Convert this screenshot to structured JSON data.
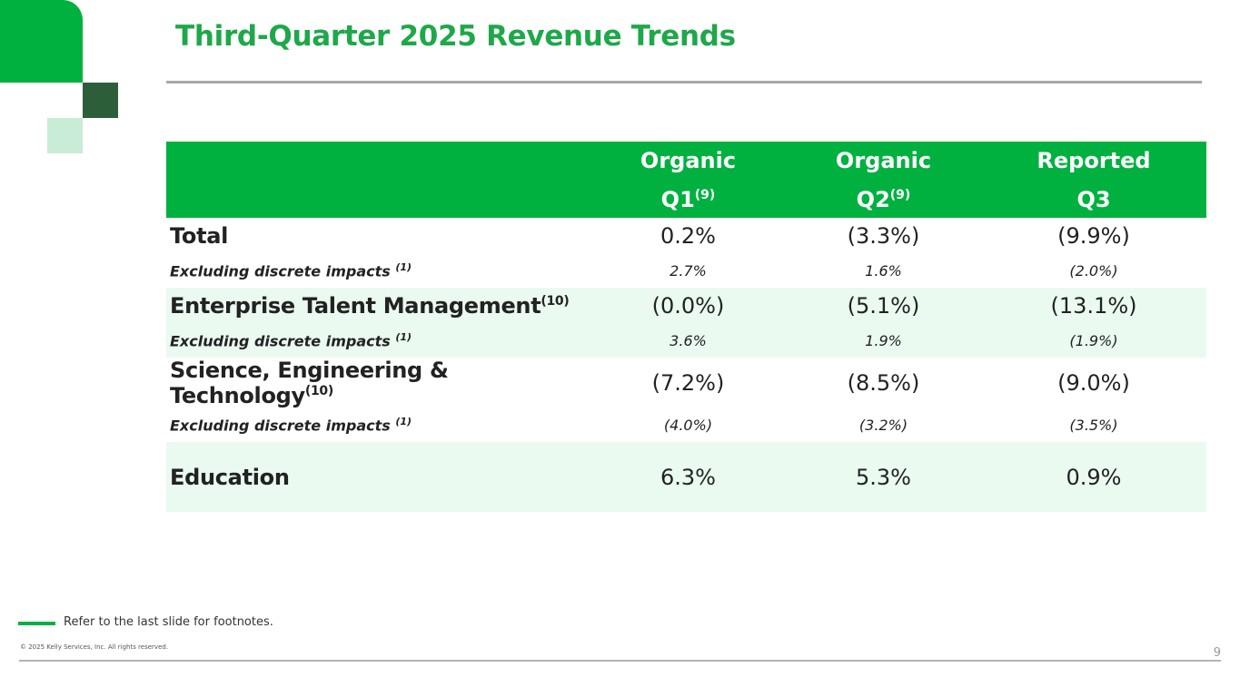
{
  "title": "Third-Quarter 2025 Revenue Trends",
  "colors": {
    "accent": "#00b140",
    "accent_dark": "#2d5e3a",
    "accent_light": "#c9ecd6",
    "row_shade": "#eafaf0",
    "title": "#1ea84a"
  },
  "table": {
    "headers": [
      {
        "line1": "Organic",
        "line2": "Q1",
        "sup": "(9)"
      },
      {
        "line1": "Organic",
        "line2": "Q2",
        "sup": "(9)"
      },
      {
        "line1": "Reported",
        "line2": "Q3",
        "sup": ""
      }
    ],
    "rows": {
      "total": {
        "label": "Total",
        "sup": "",
        "values": [
          "0.2%",
          "(3.3%)",
          "(9.9%)"
        ]
      },
      "total_ex": {
        "label": "Excluding discrete impacts ",
        "sup": "(1)",
        "values": [
          "2.7%",
          "1.6%",
          "(2.0%)"
        ]
      },
      "etm": {
        "label": "Enterprise Talent Management",
        "sup": "(10)",
        "values": [
          "(0.0%)",
          "(5.1%)",
          "(13.1%)"
        ]
      },
      "etm_ex": {
        "label": "Excluding discrete impacts ",
        "sup": "(1)",
        "values": [
          "3.6%",
          "1.9%",
          "(1.9%)"
        ]
      },
      "set": {
        "label": "Science, Engineering & Technology",
        "sup": "(10)",
        "values": [
          "(7.2%)",
          "(8.5%)",
          "(9.0%)"
        ]
      },
      "set_ex": {
        "label": "Excluding discrete impacts ",
        "sup": "(1)",
        "values": [
          "(4.0%)",
          "(3.2%)",
          "(3.5%)"
        ]
      },
      "edu": {
        "label": "Education",
        "sup": "",
        "values": [
          "6.3%",
          "5.3%",
          "0.9%"
        ]
      }
    }
  },
  "footer": {
    "note": "Refer to the last slide for footnotes.",
    "copyright": "© 2025 Kelly Services, Inc. All rights reserved.",
    "page_number": "9"
  }
}
